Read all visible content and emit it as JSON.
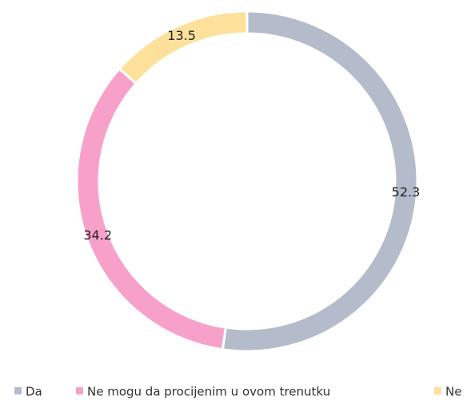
{
  "chart_data": {
    "type": "donut",
    "categories": [
      "Da",
      "Ne mogu da procijenim u ovom trenutku",
      "Ne"
    ],
    "values": [
      52.3,
      34.2,
      13.5
    ],
    "colors": [
      "#b4bbca",
      "#f7a1ca",
      "#fde19b"
    ],
    "legend": "bottom"
  }
}
